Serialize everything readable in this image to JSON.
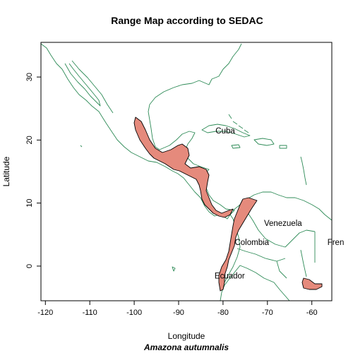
{
  "title": "Range Map according to SEDAC",
  "xlabel": "Longitude",
  "ylabel": "Latitude",
  "caption": "Amazona autumnalis",
  "axes": {
    "xlim": [
      -121,
      -55.5
    ],
    "ylim": [
      -5.5,
      35.5
    ],
    "xticks": [
      -120,
      -110,
      -100,
      -90,
      -80,
      -70,
      -60
    ],
    "yticks": [
      0,
      10,
      20,
      30
    ]
  },
  "colors": {
    "coastline": "#2e8b57",
    "range_fill": "#e58a7c",
    "range_border": "#000000"
  },
  "map_labels": [
    {
      "text": "Cuba",
      "lon": -79.5,
      "lat": 21.5
    },
    {
      "text": "Venezuela",
      "lon": -66.5,
      "lat": 6.8
    },
    {
      "text": "Colombia",
      "lon": -73.5,
      "lat": 3.8
    },
    {
      "text": "Fren",
      "lon": -56.5,
      "lat": 3.8
    },
    {
      "text": "Ecuador",
      "lon": -78.5,
      "lat": -1.5
    }
  ]
}
